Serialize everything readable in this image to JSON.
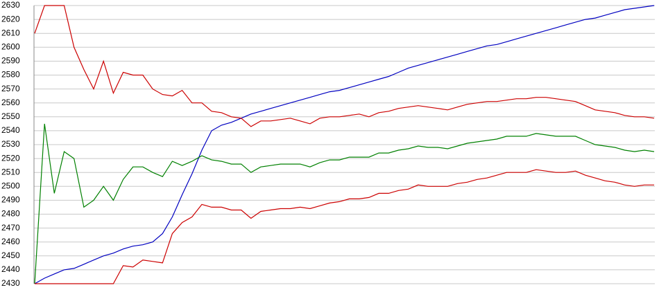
{
  "chart_data": {
    "type": "line",
    "ylim": [
      2430,
      2630
    ],
    "yticks": [
      2430,
      2440,
      2450,
      2460,
      2470,
      2480,
      2490,
      2500,
      2510,
      2520,
      2530,
      2540,
      2550,
      2560,
      2570,
      2580,
      2590,
      2600,
      2610,
      2620,
      2630
    ],
    "grid": true,
    "series": [
      {
        "color": "#0000c0",
        "values": [
          2430,
          2434,
          2437,
          2440,
          2441,
          2444,
          2447,
          2450,
          2452,
          2455,
          2457,
          2458,
          2460,
          2466,
          2478,
          2494,
          2509,
          2526,
          2540,
          2544,
          2546,
          2549,
          2552,
          2554,
          2556,
          2558,
          2560,
          2562,
          2564,
          2566,
          2568,
          2569,
          2571,
          2573,
          2575,
          2577,
          2579,
          2582,
          2585,
          2587,
          2589,
          2591,
          2593,
          2595,
          2597,
          2599,
          2601,
          2602,
          2604,
          2606,
          2608,
          2610,
          2612,
          2614,
          2616,
          2618,
          2620,
          2621,
          2623,
          2625,
          2627,
          2628,
          2629,
          2630
        ]
      },
      {
        "color": "#cc0000",
        "values": [
          2610,
          2630,
          2630,
          2630,
          2600,
          2584,
          2570,
          2590,
          2567,
          2582,
          2580,
          2580,
          2570,
          2566,
          2565,
          2569,
          2560,
          2560,
          2554,
          2553,
          2550,
          2549,
          2543,
          2547,
          2547,
          2548,
          2549,
          2547,
          2545,
          2549,
          2550,
          2550,
          2551,
          2552,
          2550,
          2553,
          2554,
          2556,
          2557,
          2558,
          2557,
          2556,
          2555,
          2557,
          2559,
          2560,
          2561,
          2561,
          2562,
          2563,
          2563,
          2564,
          2564,
          2563,
          2562,
          2561,
          2558,
          2555,
          2554,
          2553,
          2551,
          2550,
          2550,
          2549
        ]
      },
      {
        "color": "#008000",
        "values": [
          2430,
          2545,
          2495,
          2525,
          2520,
          2485,
          2490,
          2500,
          2490,
          2505,
          2514,
          2514,
          2510,
          2507,
          2518,
          2515,
          2518,
          2522,
          2519,
          2518,
          2516,
          2516,
          2510,
          2514,
          2515,
          2516,
          2516,
          2516,
          2514,
          2517,
          2519,
          2519,
          2521,
          2521,
          2521,
          2524,
          2524,
          2526,
          2527,
          2529,
          2528,
          2528,
          2527,
          2529,
          2531,
          2532,
          2533,
          2534,
          2536,
          2536,
          2536,
          2538,
          2537,
          2536,
          2536,
          2536,
          2533,
          2530,
          2529,
          2528,
          2526,
          2525,
          2526,
          2525
        ]
      },
      {
        "color": "#cc0000",
        "values": [
          2430,
          2430,
          2430,
          2430,
          2430,
          2430,
          2430,
          2430,
          2430,
          2443,
          2442,
          2447,
          2446,
          2445,
          2466,
          2474,
          2478,
          2487,
          2485,
          2485,
          2483,
          2483,
          2477,
          2482,
          2483,
          2484,
          2484,
          2485,
          2484,
          2486,
          2488,
          2489,
          2491,
          2491,
          2492,
          2495,
          2495,
          2497,
          2498,
          2501,
          2500,
          2500,
          2500,
          2502,
          2503,
          2505,
          2506,
          2508,
          2510,
          2510,
          2510,
          2512,
          2511,
          2510,
          2510,
          2511,
          2508,
          2506,
          2504,
          2503,
          2501,
          2500,
          2501,
          2501
        ]
      }
    ]
  }
}
